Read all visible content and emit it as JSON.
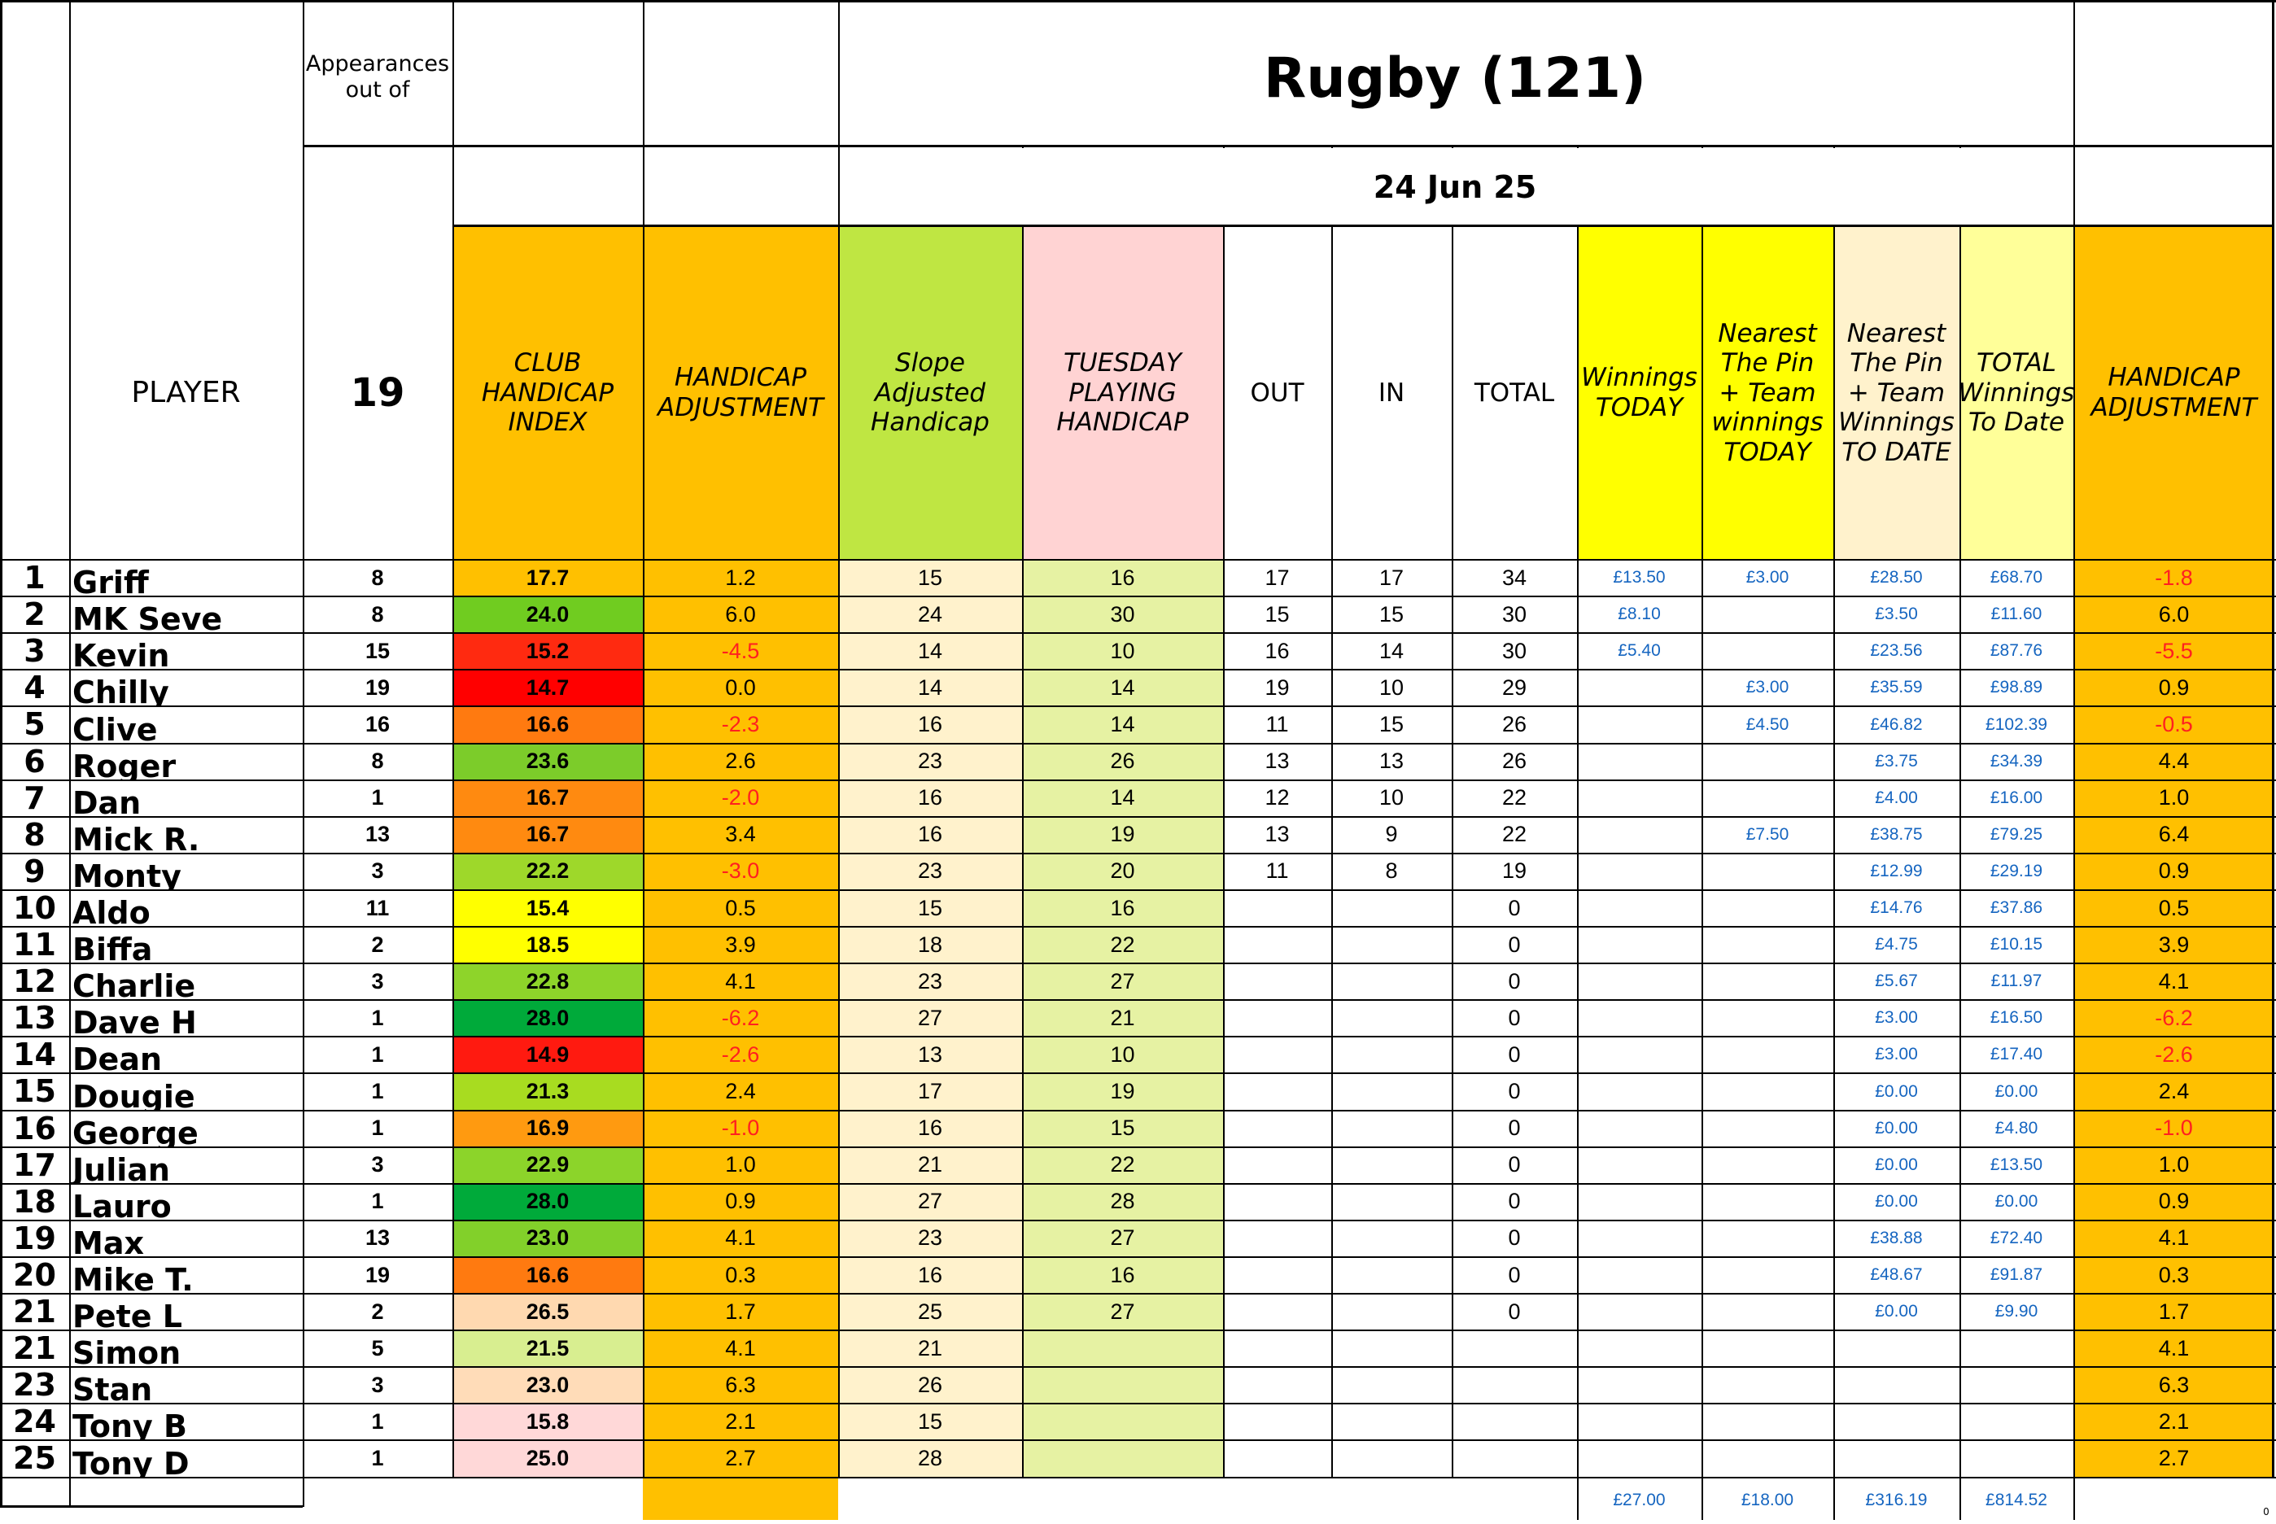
{
  "title": "Rugby (121)",
  "date": "24 Jun 25",
  "appearances_label": "Appearances out of",
  "appearances_total": "19",
  "headers": {
    "player": "PLAYER",
    "club_index": "CLUB HANDICAP INDEX",
    "hcp_adj": "HANDICAP ADJUSTMENT",
    "slope": "Slope Adjusted Handicap",
    "tuesday": "TUESDAY PLAYING HANDICAP",
    "out": "OUT",
    "in": "IN",
    "total": "TOTAL",
    "winnings_today": "Winnings TODAY",
    "ntp_today": "Nearest The Pin + Team winnings TODAY",
    "ntp_to_date": "Nearest The Pin + Team Winnings TO DATE",
    "total_to_date": "TOTAL Winnings To Date",
    "hcp_adj2": "HANDICAP ADJUSTMENT"
  },
  "colors": {
    "orange_header": "#ffc000",
    "green_header": "#bfe642",
    "pink_header": "#ffd3d3",
    "yellow_header": "#ffff00",
    "cream_header": "#fff2cc",
    "light_yellow_header": "#ffff99",
    "cream_cell": "#fff2cc",
    "light_green_cell": "#e6f2a3",
    "negative_text": "#ff2020",
    "money_text": "#1565c0"
  },
  "rows": [
    {
      "no": "1",
      "name": "Griff",
      "apps": "8",
      "idx": "17.7",
      "idx_color": "#ffc000",
      "adj": "1.2",
      "adj_neg": false,
      "slope": "15",
      "tue": "16",
      "out": "17",
      "in": "17",
      "total": "34",
      "win": "£13.50",
      "ntp": "£3.00",
      "ntp_td": "£28.50",
      "tot_td": "£68.70",
      "adj2": "-1.8",
      "adj2_neg": true
    },
    {
      "no": "2",
      "name": "MK Seve",
      "apps": "8",
      "idx": "24.0",
      "idx_color": "#70cc20",
      "adj": "6.0",
      "adj_neg": false,
      "slope": "24",
      "tue": "30",
      "out": "15",
      "in": "15",
      "total": "30",
      "win": "£8.10",
      "ntp": "",
      "ntp_td": "£3.50",
      "tot_td": "£11.60",
      "adj2": "6.0",
      "adj2_neg": false
    },
    {
      "no": "3",
      "name": "Kevin",
      "apps": "15",
      "idx": "15.2",
      "idx_color": "#ff2a10",
      "adj": "-4.5",
      "adj_neg": true,
      "slope": "14",
      "tue": "10",
      "out": "16",
      "in": "14",
      "total": "30",
      "win": "£5.40",
      "ntp": "",
      "ntp_td": "£23.56",
      "tot_td": "£87.76",
      "adj2": "-5.5",
      "adj2_neg": true
    },
    {
      "no": "4",
      "name": "Chilly",
      "apps": "19",
      "idx": "14.7",
      "idx_color": "#ff0000",
      "adj": "0.0",
      "adj_neg": false,
      "slope": "14",
      "tue": "14",
      "out": "19",
      "in": "10",
      "total": "29",
      "win": "",
      "ntp": "£3.00",
      "ntp_td": "£35.59",
      "tot_td": "£98.89",
      "adj2": "0.9",
      "adj2_neg": false
    },
    {
      "no": "5",
      "name": "Clive",
      "apps": "16",
      "idx": "16.6",
      "idx_color": "#ff7a10",
      "adj": "-2.3",
      "adj_neg": true,
      "slope": "16",
      "tue": "14",
      "out": "11",
      "in": "15",
      "total": "26",
      "win": "",
      "ntp": "£4.50",
      "ntp_td": "£46.82",
      "tot_td": "£102.39",
      "adj2": "-0.5",
      "adj2_neg": true
    },
    {
      "no": "6",
      "name": "Roger",
      "apps": "8",
      "idx": "23.6",
      "idx_color": "#7ccc2a",
      "adj": "2.6",
      "adj_neg": false,
      "slope": "23",
      "tue": "26",
      "out": "13",
      "in": "13",
      "total": "26",
      "win": "",
      "ntp": "",
      "ntp_td": "£3.75",
      "tot_td": "£34.39",
      "adj2": "4.4",
      "adj2_neg": false
    },
    {
      "no": "7",
      "name": "Dan",
      "apps": "1",
      "idx": "16.7",
      "idx_color": "#ff8a10",
      "adj": "-2.0",
      "adj_neg": true,
      "slope": "16",
      "tue": "14",
      "out": "12",
      "in": "10",
      "total": "22",
      "win": "",
      "ntp": "",
      "ntp_td": "£4.00",
      "tot_td": "£16.00",
      "adj2": "1.0",
      "adj2_neg": false
    },
    {
      "no": "8",
      "name": "Mick R.",
      "apps": "13",
      "idx": "16.7",
      "idx_color": "#ff8a10",
      "adj": "3.4",
      "adj_neg": false,
      "slope": "16",
      "tue": "19",
      "out": "13",
      "in": "9",
      "total": "22",
      "win": "",
      "ntp": "£7.50",
      "ntp_td": "£38.75",
      "tot_td": "£79.25",
      "adj2": "6.4",
      "adj2_neg": false
    },
    {
      "no": "9",
      "name": "Monty",
      "apps": "3",
      "idx": "22.2",
      "idx_color": "#9ed82a",
      "adj": "-3.0",
      "adj_neg": true,
      "slope": "23",
      "tue": "20",
      "out": "11",
      "in": "8",
      "total": "19",
      "win": "",
      "ntp": "",
      "ntp_td": "£12.99",
      "tot_td": "£29.19",
      "adj2": "0.9",
      "adj2_neg": false
    },
    {
      "no": "10",
      "name": "Aldo",
      "apps": "11",
      "idx": "15.4",
      "idx_color": "#ffff00",
      "adj": "0.5",
      "adj_neg": false,
      "slope": "15",
      "tue": "16",
      "out": "",
      "in": "",
      "total": "0",
      "win": "",
      "ntp": "",
      "ntp_td": "£14.76",
      "tot_td": "£37.86",
      "adj2": "0.5",
      "adj2_neg": false
    },
    {
      "no": "11",
      "name": "Biffa",
      "apps": "2",
      "idx": "18.5",
      "idx_color": "#ffff00",
      "adj": "3.9",
      "adj_neg": false,
      "slope": "18",
      "tue": "22",
      "out": "",
      "in": "",
      "total": "0",
      "win": "",
      "ntp": "",
      "ntp_td": "£4.75",
      "tot_td": "£10.15",
      "adj2": "3.9",
      "adj2_neg": false
    },
    {
      "no": "12",
      "name": "Charlie",
      "apps": "3",
      "idx": "22.8",
      "idx_color": "#8ed42a",
      "adj": "4.1",
      "adj_neg": false,
      "slope": "23",
      "tue": "27",
      "out": "",
      "in": "",
      "total": "0",
      "win": "",
      "ntp": "",
      "ntp_td": "£5.67",
      "tot_td": "£11.97",
      "adj2": "4.1",
      "adj2_neg": false
    },
    {
      "no": "13",
      "name": "Dave H",
      "apps": "1",
      "idx": "28.0",
      "idx_color": "#00aa3a",
      "adj": "-6.2",
      "adj_neg": true,
      "slope": "27",
      "tue": "21",
      "out": "",
      "in": "",
      "total": "0",
      "win": "",
      "ntp": "",
      "ntp_td": "£3.00",
      "tot_td": "£16.50",
      "adj2": "-6.2",
      "adj2_neg": true
    },
    {
      "no": "14",
      "name": "Dean",
      "apps": "1",
      "idx": "14.9",
      "idx_color": "#ff1a10",
      "adj": "-2.6",
      "adj_neg": true,
      "slope": "13",
      "tue": "10",
      "out": "",
      "in": "",
      "total": "0",
      "win": "",
      "ntp": "",
      "ntp_td": "£3.00",
      "tot_td": "£17.40",
      "adj2": "-2.6",
      "adj2_neg": true
    },
    {
      "no": "15",
      "name": "Dougie",
      "apps": "1",
      "idx": "21.3",
      "idx_color": "#a8dc20",
      "adj": "2.4",
      "adj_neg": false,
      "slope": "17",
      "tue": "19",
      "out": "",
      "in": "",
      "total": "0",
      "win": "",
      "ntp": "",
      "ntp_td": "£0.00",
      "tot_td": "£0.00",
      "adj2": "2.4",
      "adj2_neg": false
    },
    {
      "no": "16",
      "name": "George",
      "apps": "1",
      "idx": "16.9",
      "idx_color": "#ff9a10",
      "adj": "-1.0",
      "adj_neg": true,
      "slope": "16",
      "tue": "15",
      "out": "",
      "in": "",
      "total": "0",
      "win": "",
      "ntp": "",
      "ntp_td": "£0.00",
      "tot_td": "£4.80",
      "adj2": "-1.0",
      "adj2_neg": true
    },
    {
      "no": "17",
      "name": "Julian",
      "apps": "3",
      "idx": "22.9",
      "idx_color": "#8cd42a",
      "adj": "1.0",
      "adj_neg": false,
      "slope": "21",
      "tue": "22",
      "out": "",
      "in": "",
      "total": "0",
      "win": "",
      "ntp": "",
      "ntp_td": "£0.00",
      "tot_td": "£13.50",
      "adj2": "1.0",
      "adj2_neg": false
    },
    {
      "no": "18",
      "name": "Lauro",
      "apps": "1",
      "idx": "28.0",
      "idx_color": "#00aa3a",
      "adj": "0.9",
      "adj_neg": false,
      "slope": "27",
      "tue": "28",
      "out": "",
      "in": "",
      "total": "0",
      "win": "",
      "ntp": "",
      "ntp_td": "£0.00",
      "tot_td": "£0.00",
      "adj2": "0.9",
      "adj2_neg": false
    },
    {
      "no": "19",
      "name": "Max",
      "apps": "13",
      "idx": "23.0",
      "idx_color": "#82d02a",
      "adj": "4.1",
      "adj_neg": false,
      "slope": "23",
      "tue": "27",
      "out": "",
      "in": "",
      "total": "0",
      "win": "",
      "ntp": "",
      "ntp_td": "£38.88",
      "tot_td": "£72.40",
      "adj2": "4.1",
      "adj2_neg": false
    },
    {
      "no": "20",
      "name": "Mike T.",
      "apps": "19",
      "idx": "16.6",
      "idx_color": "#ff7a10",
      "adj": "0.3",
      "adj_neg": false,
      "slope": "16",
      "tue": "16",
      "out": "",
      "in": "",
      "total": "0",
      "win": "",
      "ntp": "",
      "ntp_td": "£48.67",
      "tot_td": "£91.87",
      "adj2": "0.3",
      "adj2_neg": false
    },
    {
      "no": "21",
      "name": "Pete L",
      "apps": "2",
      "idx": "26.5",
      "idx_color": "#ffd9b0",
      "adj": "1.7",
      "adj_neg": false,
      "slope": "25",
      "tue": "27",
      "out": "",
      "in": "",
      "total": "0",
      "win": "",
      "ntp": "",
      "ntp_td": "£0.00",
      "tot_td": "£9.90",
      "adj2": "1.7",
      "adj2_neg": false
    },
    {
      "no": "21",
      "name": "Simon",
      "apps": "5",
      "idx": "21.5",
      "idx_color": "#d8ee90",
      "adj": "4.1",
      "adj_neg": false,
      "slope": "21",
      "tue": "",
      "out": "",
      "in": "",
      "total": "",
      "win": "",
      "ntp": "",
      "ntp_td": "",
      "tot_td": "",
      "adj2": "4.1",
      "adj2_neg": false
    },
    {
      "no": "23",
      "name": "Stan",
      "apps": "3",
      "idx": "23.0",
      "idx_color": "#ffdcb8",
      "adj": "6.3",
      "adj_neg": false,
      "slope": "26",
      "tue": "",
      "out": "",
      "in": "",
      "total": "",
      "win": "",
      "ntp": "",
      "ntp_td": "",
      "tot_td": "",
      "adj2": "6.3",
      "adj2_neg": false
    },
    {
      "no": "24",
      "name": "Tony B",
      "apps": "1",
      "idx": "15.8",
      "idx_color": "#ffd8d8",
      "adj": "2.1",
      "adj_neg": false,
      "slope": "15",
      "tue": "",
      "out": "",
      "in": "",
      "total": "",
      "win": "",
      "ntp": "",
      "ntp_td": "",
      "tot_td": "",
      "adj2": "2.1",
      "adj2_neg": false
    },
    {
      "no": "25",
      "name": "Tony D",
      "apps": "1",
      "idx": "25.0",
      "idx_color": "#ffd8d8",
      "adj": "2.7",
      "adj_neg": false,
      "slope": "28",
      "tue": "",
      "out": "",
      "in": "",
      "total": "",
      "win": "",
      "ntp": "",
      "ntp_td": "",
      "tot_td": "",
      "adj2": "2.7",
      "adj2_neg": false
    }
  ],
  "totals": {
    "win": "£27.00",
    "ntp": "£18.00",
    "ntp_td": "£316.19",
    "tot_td": "£814.52"
  },
  "corner_mark": "0"
}
